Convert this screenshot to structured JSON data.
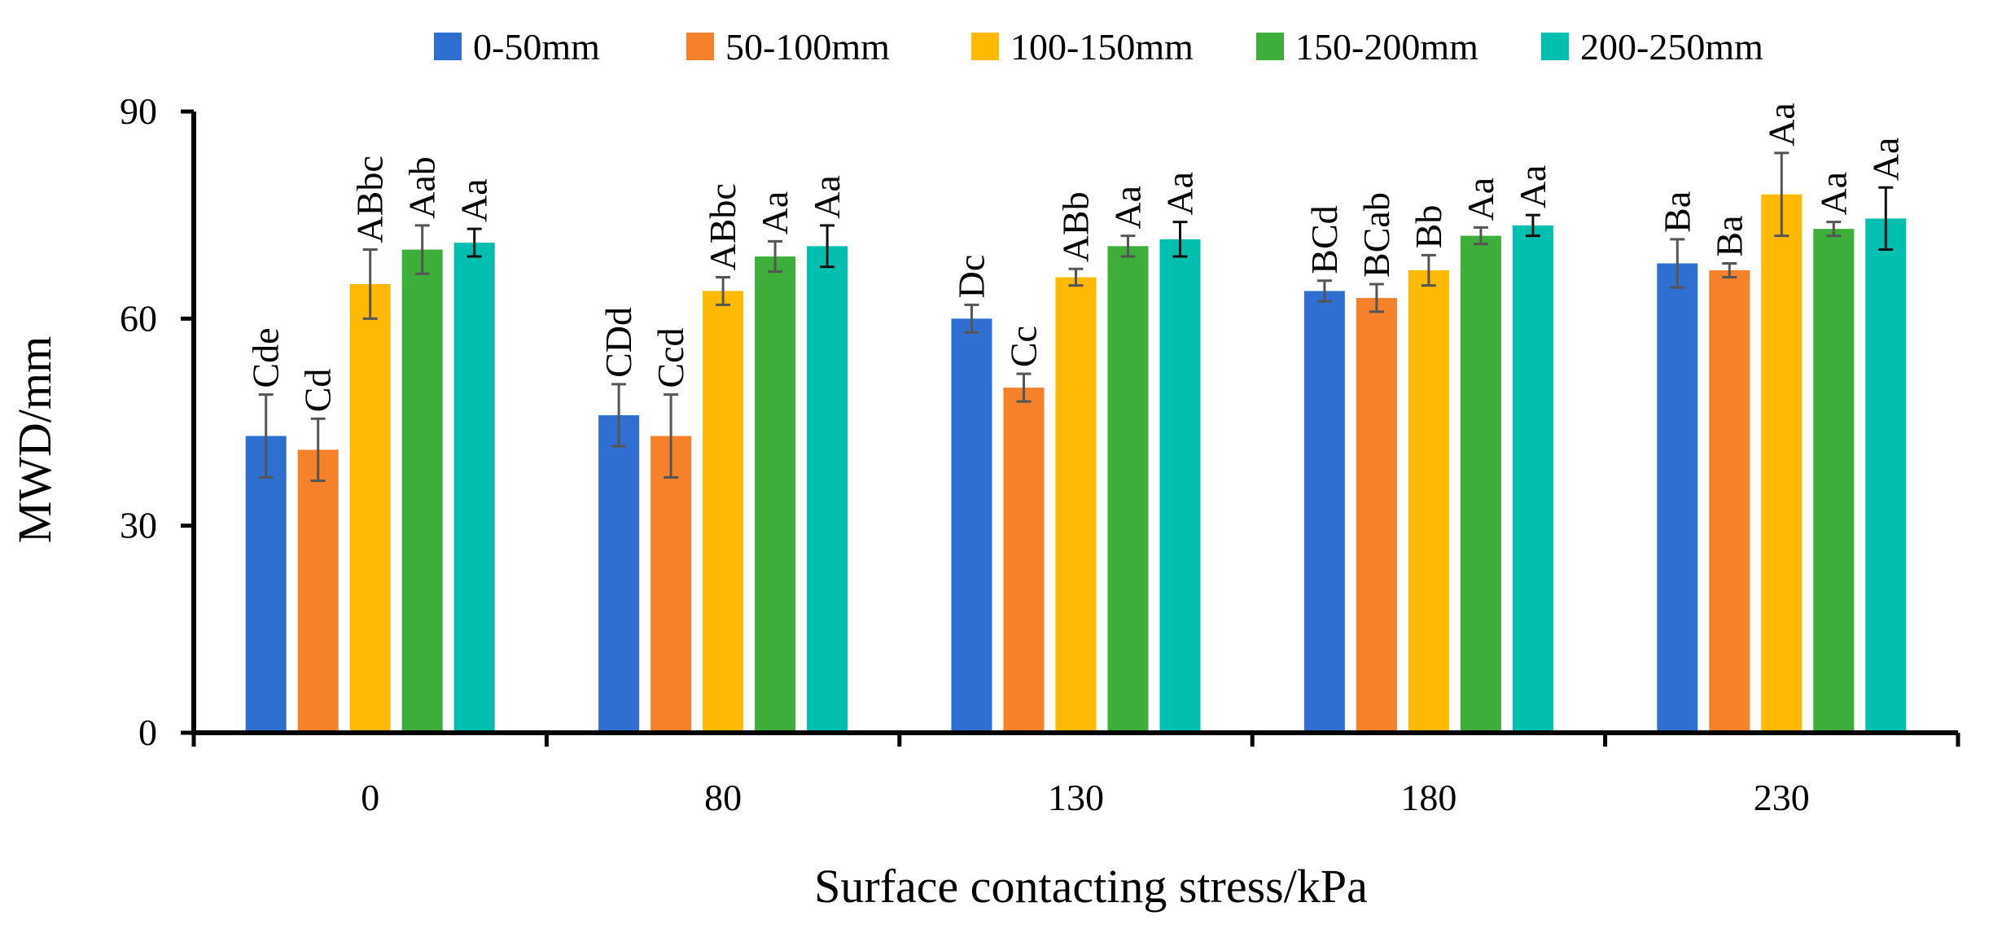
{
  "chart_data": {
    "type": "bar",
    "title": "",
    "xlabel": "Surface contacting stress/kPa",
    "ylabel": "MWD/mm",
    "ylim": [
      0,
      90
    ],
    "yticks": [
      0,
      30,
      60,
      90
    ],
    "grid": false,
    "legend_position": "top",
    "categories": [
      "0",
      "80",
      "130",
      "180",
      "230"
    ],
    "series": [
      {
        "name": "0-50mm",
        "color": "#2E6FD1",
        "values": [
          43,
          46,
          60,
          64,
          68
        ],
        "errors": [
          6,
          4.5,
          2,
          1.5,
          3.5
        ],
        "labels": [
          "Cde",
          "CDd",
          "Dc",
          "BCd",
          "Ba"
        ]
      },
      {
        "name": "50-100mm",
        "color": "#F5822A",
        "values": [
          41,
          43,
          50,
          63,
          67
        ],
        "errors": [
          4.5,
          6,
          2,
          2,
          1
        ],
        "labels": [
          "Cd",
          "Ccd",
          "Cc",
          "BCab",
          "Ba"
        ]
      },
      {
        "name": "100-150mm",
        "color": "#FFB900",
        "values": [
          65,
          64,
          66,
          67,
          78
        ],
        "errors": [
          5,
          2,
          1.2,
          2.2,
          6
        ],
        "labels": [
          "ABbc",
          "ABbc",
          "ABb",
          "Bb",
          "Aa"
        ]
      },
      {
        "name": "150-200mm",
        "color": "#3DAE3A",
        "values": [
          70,
          69,
          70.5,
          72,
          73
        ],
        "errors": [
          3.5,
          2.2,
          1.5,
          1.2,
          1
        ],
        "labels": [
          "Aab",
          "Aa",
          "Aa",
          "Aa",
          "Aa"
        ]
      },
      {
        "name": "200-250mm",
        "color": "#00BFAE",
        "values": [
          71,
          70.5,
          71.5,
          73.5,
          74.5
        ],
        "errors": [
          2,
          3,
          2.5,
          1.5,
          4.5
        ],
        "labels": [
          "Aa",
          "Aa",
          "Aa",
          "Aa",
          "Aa"
        ]
      }
    ]
  }
}
